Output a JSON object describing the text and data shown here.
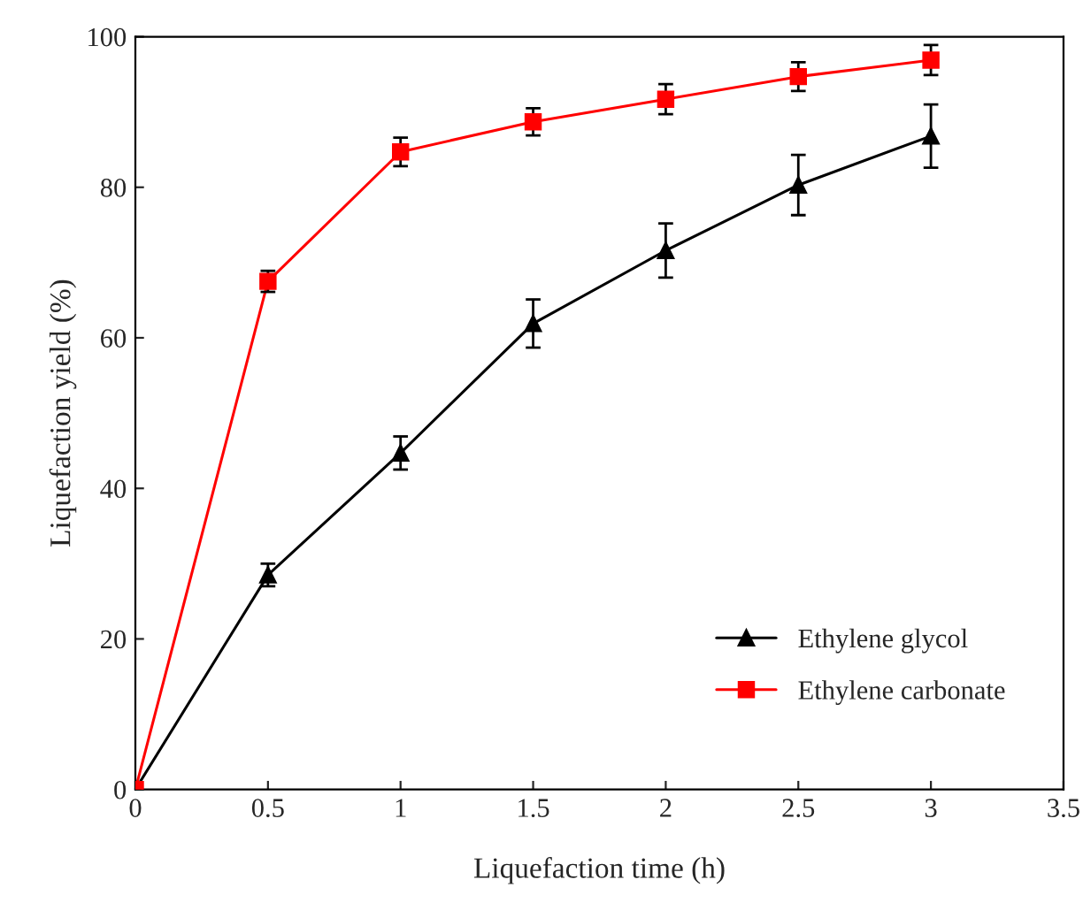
{
  "chart_data": {
    "type": "line",
    "xlabel": "Liquefaction time (h)",
    "ylabel": "Liquefaction yield (%)",
    "x": [
      0,
      0.5,
      1,
      1.5,
      2,
      2.5,
      3
    ],
    "series": [
      {
        "name": "Ethylene glycol",
        "color": "#000000",
        "marker": "triangle",
        "values": [
          0,
          28.5,
          44.7,
          61.9,
          71.6,
          80.3,
          86.8
        ],
        "errors": [
          null,
          1.5,
          2.2,
          3.2,
          3.6,
          4,
          4.2
        ]
      },
      {
        "name": "Ethylene carbonate",
        "color": "#ff0000",
        "marker": "square",
        "values": [
          0,
          67.5,
          84.7,
          88.7,
          91.7,
          94.7,
          96.9
        ],
        "errors": [
          null,
          1.4,
          1.9,
          1.8,
          2,
          1.9,
          2
        ]
      }
    ],
    "xlim": [
      0,
      3.5
    ],
    "xticks": [
      0,
      0.5,
      1,
      1.5,
      2,
      2.5,
      3,
      3.5
    ],
    "ylim": [
      0,
      100
    ],
    "yticks": [
      0,
      20,
      40,
      60,
      80,
      100
    ],
    "grid": false,
    "legend": "bottom right",
    "line_style": "solid"
  }
}
